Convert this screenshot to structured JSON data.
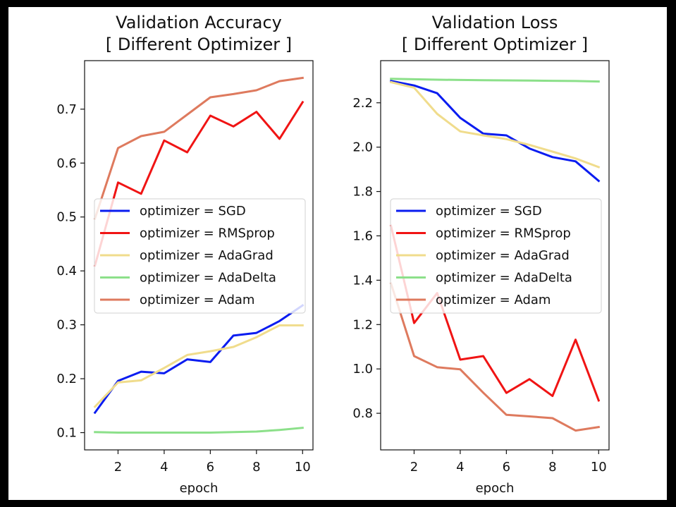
{
  "colors": {
    "SGD": "#0a1cf0",
    "RMSprop": "#f01414",
    "AdaGrad": "#f0dc8c",
    "AdaDelta": "#8ce08a",
    "Adam": "#de7a5e"
  },
  "chart_data": [
    {
      "type": "line",
      "title": "Validation Accuracy\n[ Different Optimizer ]",
      "title_lines": [
        "Validation Accuracy",
        "[ Different Optimizer ]"
      ],
      "xlabel": "epoch",
      "ylabel": "",
      "xlim": [
        0.55,
        10.45
      ],
      "ylim": [
        0.068,
        0.79
      ],
      "xticks": [
        2,
        4,
        6,
        8,
        10
      ],
      "yticks": [
        0.1,
        0.2,
        0.3,
        0.4,
        0.5,
        0.6,
        0.7
      ],
      "ytick_labels": [
        "0.1",
        "0.2",
        "0.3",
        "0.4",
        "0.5",
        "0.6",
        "0.7"
      ],
      "legend_position": "center-left",
      "x": [
        1,
        2,
        3,
        4,
        5,
        6,
        7,
        8,
        9,
        10
      ],
      "series": [
        {
          "name": "optimizer = SGD",
          "key": "SGD",
          "values": [
            0.137,
            0.196,
            0.213,
            0.21,
            0.236,
            0.231,
            0.28,
            0.285,
            0.307,
            0.336
          ]
        },
        {
          "name": "optimizer = RMSprop",
          "key": "RMSprop",
          "values": [
            0.41,
            0.564,
            0.543,
            0.642,
            0.62,
            0.688,
            0.668,
            0.695,
            0.645,
            0.713
          ]
        },
        {
          "name": "optimizer = AdaGrad",
          "key": "AdaGrad",
          "values": [
            0.148,
            0.193,
            0.197,
            0.22,
            0.244,
            0.251,
            0.259,
            0.277,
            0.299,
            0.299
          ]
        },
        {
          "name": "optimizer = AdaDelta",
          "key": "AdaDelta",
          "values": [
            0.101,
            0.1,
            0.1,
            0.1,
            0.1,
            0.1,
            0.101,
            0.102,
            0.105,
            0.109
          ]
        },
        {
          "name": "optimizer = Adam",
          "key": "Adam",
          "values": [
            0.497,
            0.628,
            0.65,
            0.658,
            0.69,
            0.722,
            0.728,
            0.735,
            0.752,
            0.758
          ]
        }
      ]
    },
    {
      "type": "line",
      "title": "Validation Loss\n[ Different Optimizer ]",
      "title_lines": [
        "Validation Loss",
        "[ Different Optimizer ]"
      ],
      "xlabel": "epoch",
      "ylabel": "",
      "xlim": [
        0.55,
        10.45
      ],
      "ylim": [
        0.635,
        2.39
      ],
      "xticks": [
        2,
        4,
        6,
        8,
        10
      ],
      "yticks": [
        0.8,
        1.0,
        1.2,
        1.4,
        1.6,
        1.8,
        2.0,
        2.2
      ],
      "ytick_labels": [
        "0.8",
        "1.0",
        "1.2",
        "1.4",
        "1.6",
        "1.8",
        "2.0",
        "2.2"
      ],
      "legend_position": "center-left",
      "x": [
        1,
        2,
        3,
        4,
        5,
        6,
        7,
        8,
        9,
        10
      ],
      "series": [
        {
          "name": "optimizer = SGD",
          "key": "SGD",
          "values": [
            2.298,
            2.278,
            2.243,
            2.132,
            2.061,
            2.053,
            1.994,
            1.955,
            1.936,
            1.848
          ]
        },
        {
          "name": "optimizer = RMSprop",
          "key": "RMSprop",
          "values": [
            1.645,
            1.207,
            1.342,
            1.042,
            1.058,
            0.892,
            0.954,
            0.878,
            1.132,
            0.858
          ]
        },
        {
          "name": "optimizer = AdaGrad",
          "key": "AdaGrad",
          "values": [
            2.293,
            2.268,
            2.15,
            2.071,
            2.053,
            2.036,
            2.01,
            1.98,
            1.949,
            1.91
          ]
        },
        {
          "name": "optimizer = AdaDelta",
          "key": "AdaDelta",
          "values": [
            2.308,
            2.306,
            2.304,
            2.303,
            2.302,
            2.301,
            2.3,
            2.299,
            2.298,
            2.296
          ]
        },
        {
          "name": "optimizer = Adam",
          "key": "Adam",
          "values": [
            1.385,
            1.058,
            1.008,
            0.998,
            0.893,
            0.793,
            0.786,
            0.778,
            0.722,
            0.738
          ]
        }
      ]
    }
  ]
}
